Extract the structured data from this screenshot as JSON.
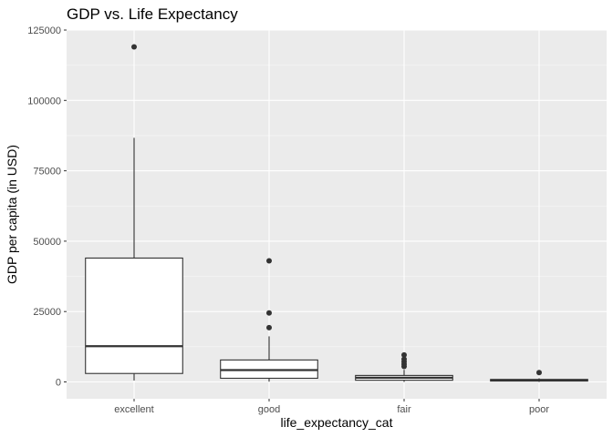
{
  "chart_data": {
    "type": "boxplot",
    "title": "GDP vs. Life Expectancy",
    "xlabel": "life_expectancy_cat",
    "ylabel": "GDP per capita (in USD)",
    "categories": [
      "excellent",
      "good",
      "fair",
      "poor"
    ],
    "ylim": [
      -5900,
      125000
    ],
    "yticks": [
      0,
      25000,
      50000,
      75000,
      100000,
      125000
    ],
    "ytick_labels": [
      "0",
      "25000",
      "50000",
      "75000",
      "100000",
      "125000"
    ],
    "grid": true,
    "legend": "none",
    "boxes": [
      {
        "category": "excellent",
        "lower_whisker": 500,
        "q1": 3000,
        "median": 12700,
        "q3": 44000,
        "upper_whisker": 86700,
        "outliers": [
          119000
        ]
      },
      {
        "category": "good",
        "lower_whisker": 100,
        "q1": 1300,
        "median": 4200,
        "q3": 7800,
        "upper_whisker": 16200,
        "outliers": [
          19300,
          24500,
          43000
        ]
      },
      {
        "category": "fair",
        "lower_whisker": 0,
        "q1": 600,
        "median": 1500,
        "q3": 2300,
        "upper_whisker": 4300,
        "outliers": [
          5500,
          6300,
          7200,
          8100,
          9600
        ]
      },
      {
        "category": "poor",
        "lower_whisker": 0,
        "q1": 300,
        "median": 550,
        "q3": 900,
        "upper_whisker": 1300,
        "outliers": [
          3300
        ]
      }
    ]
  },
  "colors": {
    "panel_background": "#ebebeb",
    "grid_major": "#ffffff",
    "grid_minor": "#f7f7f7",
    "box_fill": "#ffffff",
    "box_stroke": "#333333",
    "outlier": "#333333"
  }
}
